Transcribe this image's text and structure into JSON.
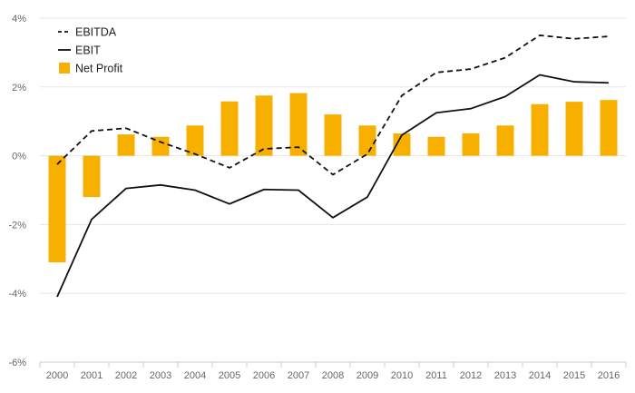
{
  "chart_data": {
    "type": "bar",
    "categories": [
      "2000",
      "2001",
      "2002",
      "2003",
      "2004",
      "2005",
      "2006",
      "2007",
      "2008",
      "2009",
      "2010",
      "2011",
      "2012",
      "2013",
      "2014",
      "2015",
      "2016"
    ],
    "ylim": [
      -6,
      4
    ],
    "y_ticks": [
      {
        "value": 4,
        "label": "4%"
      },
      {
        "value": 2,
        "label": "2%"
      },
      {
        "value": 0,
        "label": "0%"
      },
      {
        "value": -2,
        "label": "-2%"
      },
      {
        "value": -4,
        "label": "-4%"
      },
      {
        "value": -6,
        "label": "-6%"
      }
    ],
    "grid": true,
    "legend_position": "top-left",
    "series": [
      {
        "name": "EBITDA",
        "kind": "line",
        "style": "dashed",
        "color": "#111111",
        "values": [
          -0.25,
          0.72,
          0.8,
          0.4,
          0.05,
          -0.35,
          0.2,
          0.25,
          -0.55,
          0.05,
          1.75,
          2.42,
          2.52,
          2.85,
          3.5,
          3.4,
          3.47
        ]
      },
      {
        "name": "EBIT",
        "kind": "line",
        "style": "solid",
        "color": "#111111",
        "values": [
          -4.1,
          -1.85,
          -0.95,
          -0.85,
          -1.0,
          -1.4,
          -0.98,
          -1.0,
          -1.8,
          -1.2,
          0.6,
          1.25,
          1.37,
          1.72,
          2.35,
          2.15,
          2.12
        ]
      },
      {
        "name": "Net Profit",
        "kind": "bar",
        "color": "#F7B000",
        "values": [
          -3.1,
          -1.2,
          0.62,
          0.55,
          0.88,
          1.58,
          1.75,
          1.82,
          1.2,
          0.88,
          0.65,
          0.55,
          0.65,
          0.88,
          1.5,
          1.57,
          1.62
        ]
      }
    ]
  }
}
